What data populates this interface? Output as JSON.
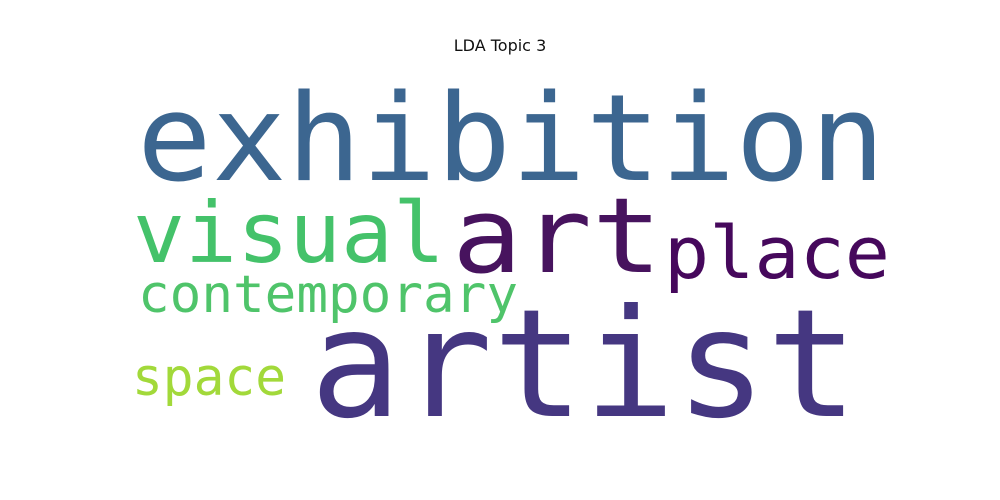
{
  "chart_data": {
    "type": "wordcloud",
    "title": "LDA Topic 3",
    "words": [
      {
        "text": "artist",
        "color": "#453781"
      },
      {
        "text": "exhibition",
        "color": "#3c6690"
      },
      {
        "text": "art",
        "color": "#47135e"
      },
      {
        "text": "place",
        "color": "#46085c"
      },
      {
        "text": "visual",
        "color": "#44c26a"
      },
      {
        "text": "contemporary",
        "color": "#4fc46a"
      },
      {
        "text": "space",
        "color": "#a2d93a"
      }
    ]
  }
}
